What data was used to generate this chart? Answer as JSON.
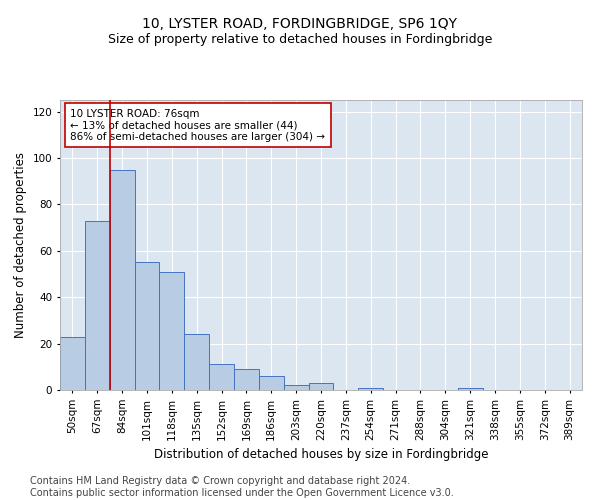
{
  "title": "10, LYSTER ROAD, FORDINGBRIDGE, SP6 1QY",
  "subtitle": "Size of property relative to detached houses in Fordingbridge",
  "xlabel": "Distribution of detached houses by size in Fordingbridge",
  "ylabel": "Number of detached properties",
  "categories": [
    "50sqm",
    "67sqm",
    "84sqm",
    "101sqm",
    "118sqm",
    "135sqm",
    "152sqm",
    "169sqm",
    "186sqm",
    "203sqm",
    "220sqm",
    "237sqm",
    "254sqm",
    "271sqm",
    "288sqm",
    "304sqm",
    "321sqm",
    "338sqm",
    "355sqm",
    "372sqm",
    "389sqm"
  ],
  "values": [
    23,
    73,
    95,
    55,
    51,
    24,
    11,
    9,
    6,
    2,
    3,
    0,
    1,
    0,
    0,
    0,
    1,
    0,
    0,
    0,
    0
  ],
  "bar_color": "#b8cce4",
  "bar_edge_color": "#4472c4",
  "vline_x_index": 1.5,
  "vline_color": "#c00000",
  "annotation_text": "10 LYSTER ROAD: 76sqm\n← 13% of detached houses are smaller (44)\n86% of semi-detached houses are larger (304) →",
  "annotation_box_color": "#ffffff",
  "annotation_box_edge_color": "#c00000",
  "ylim": [
    0,
    125
  ],
  "yticks": [
    0,
    20,
    40,
    60,
    80,
    100,
    120
  ],
  "footnote": "Contains HM Land Registry data © Crown copyright and database right 2024.\nContains public sector information licensed under the Open Government Licence v3.0.",
  "bg_color": "#dce6f1",
  "fig_bg_color": "#ffffff",
  "title_fontsize": 10,
  "subtitle_fontsize": 9,
  "xlabel_fontsize": 8.5,
  "ylabel_fontsize": 8.5,
  "tick_fontsize": 7.5,
  "footnote_fontsize": 7,
  "annotation_fontsize": 7.5
}
